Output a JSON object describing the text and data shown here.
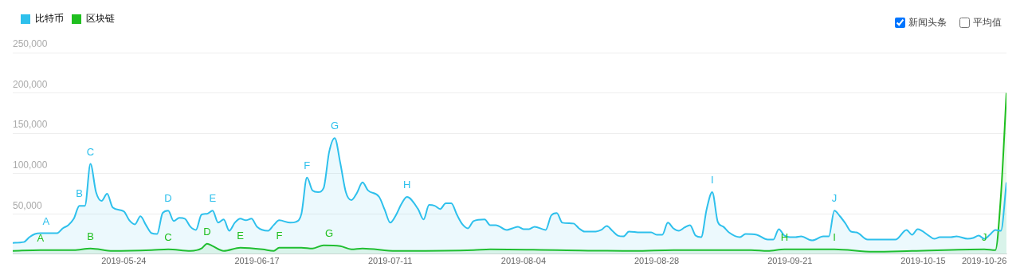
{
  "chart_data": {
    "type": "area",
    "legend": "top left",
    "grid": "y",
    "marker": "none",
    "xlim": [
      "2019-05-04",
      "2019-10-30"
    ],
    "xticks": [
      "2019-05-24",
      "2019-06-17",
      "2019-07-11",
      "2019-08-04",
      "2019-08-28",
      "2019-09-21",
      "2019-10-15",
      "2019-10-26"
    ],
    "ylim": [
      0,
      250000
    ],
    "yticks": [
      {
        "value": 0,
        "label": null
      },
      {
        "value": 50000,
        "label": "50,000"
      },
      {
        "value": 100000,
        "label": "100,000"
      },
      {
        "value": 150000,
        "label": "150,000"
      },
      {
        "value": 200000,
        "label": "200,000"
      },
      {
        "value": 250000,
        "label": "250,000"
      }
    ],
    "series": [
      {
        "name": "比特币",
        "color": "#2ec0ec",
        "x": [
          "2019-05-04",
          "2019-05-06",
          "2019-05-07",
          "2019-05-08",
          "2019-05-09",
          "2019-05-12",
          "2019-05-13",
          "2019-05-14",
          "2019-05-15",
          "2019-05-16",
          "2019-05-17",
          "2019-05-18",
          "2019-05-19",
          "2019-05-20",
          "2019-05-21",
          "2019-05-22",
          "2019-05-24",
          "2019-05-25",
          "2019-05-26",
          "2019-05-27",
          "2019-05-28",
          "2019-05-29",
          "2019-05-30",
          "2019-05-31",
          "2019-06-01",
          "2019-06-02",
          "2019-06-03",
          "2019-06-04",
          "2019-06-05",
          "2019-06-06",
          "2019-06-07",
          "2019-06-08",
          "2019-06-09",
          "2019-06-10",
          "2019-06-11",
          "2019-06-12",
          "2019-06-13",
          "2019-06-14",
          "2019-06-15",
          "2019-06-16",
          "2019-06-17",
          "2019-06-19",
          "2019-06-20",
          "2019-06-21",
          "2019-06-23",
          "2019-06-24",
          "2019-06-25",
          "2019-06-26",
          "2019-06-27",
          "2019-06-28",
          "2019-06-29",
          "2019-06-30",
          "2019-07-01",
          "2019-07-02",
          "2019-07-03",
          "2019-07-04",
          "2019-07-05",
          "2019-07-06",
          "2019-07-07",
          "2019-07-09",
          "2019-07-10",
          "2019-07-11",
          "2019-07-12",
          "2019-07-13",
          "2019-07-14",
          "2019-07-16",
          "2019-07-17",
          "2019-07-18",
          "2019-07-19",
          "2019-07-20",
          "2019-07-21",
          "2019-07-22",
          "2019-07-23",
          "2019-07-24",
          "2019-07-25",
          "2019-07-26",
          "2019-07-28",
          "2019-07-29",
          "2019-07-30",
          "2019-08-01",
          "2019-08-02",
          "2019-08-03",
          "2019-08-04",
          "2019-08-05",
          "2019-08-06",
          "2019-08-08",
          "2019-08-09",
          "2019-08-10",
          "2019-08-11",
          "2019-08-13",
          "2019-08-14",
          "2019-08-15",
          "2019-08-17",
          "2019-08-18",
          "2019-08-19",
          "2019-08-20",
          "2019-08-21",
          "2019-08-22",
          "2019-08-23",
          "2019-08-25",
          "2019-08-27",
          "2019-08-28",
          "2019-08-29",
          "2019-08-30",
          "2019-08-31",
          "2019-09-01",
          "2019-09-02",
          "2019-09-03",
          "2019-09-04",
          "2019-09-05",
          "2019-09-06",
          "2019-09-07",
          "2019-09-08",
          "2019-09-09",
          "2019-09-10",
          "2019-09-12",
          "2019-09-13",
          "2019-09-15",
          "2019-09-17",
          "2019-09-18",
          "2019-09-19",
          "2019-09-20",
          "2019-09-21",
          "2019-09-22",
          "2019-09-23",
          "2019-09-25",
          "2019-09-27",
          "2019-09-28",
          "2019-09-29",
          "2019-09-30",
          "2019-10-01",
          "2019-10-02",
          "2019-10-03",
          "2019-10-05",
          "2019-10-08",
          "2019-10-10",
          "2019-10-12",
          "2019-10-13",
          "2019-10-14",
          "2019-10-16",
          "2019-10-17",
          "2019-10-18",
          "2019-10-20",
          "2019-10-21",
          "2019-10-23",
          "2019-10-24",
          "2019-10-25",
          "2019-10-26",
          "2019-10-27",
          "2019-10-28",
          "2019-10-29",
          "2019-10-30"
        ],
        "values": [
          14000,
          15000,
          21000,
          25000,
          26000,
          26000,
          32000,
          36000,
          44000,
          60000,
          60000,
          112000,
          77000,
          66000,
          75000,
          58000,
          53000,
          42000,
          37000,
          47000,
          36000,
          26000,
          25000,
          51000,
          54000,
          41000,
          45000,
          44000,
          34000,
          30000,
          49000,
          50000,
          54000,
          39000,
          43000,
          29000,
          39000,
          44000,
          42000,
          44000,
          34000,
          29000,
          36000,
          42000,
          39000,
          40000,
          50000,
          95000,
          79000,
          77000,
          82000,
          127000,
          144000,
          113000,
          77000,
          67000,
          76000,
          89000,
          79000,
          71000,
          55000,
          39000,
          48000,
          62000,
          71000,
          56000,
          43000,
          61000,
          60000,
          56000,
          63000,
          63000,
          49000,
          37000,
          32000,
          41000,
          43000,
          36000,
          36000,
          30000,
          32000,
          34000,
          31000,
          31000,
          34000,
          30000,
          48000,
          51000,
          39000,
          38000,
          32000,
          28000,
          28000,
          30000,
          35000,
          29000,
          23000,
          22000,
          28000,
          27000,
          27000,
          24000,
          24000,
          39000,
          32000,
          29000,
          33000,
          36000,
          23000,
          21000,
          56000,
          77000,
          40000,
          34000,
          27000,
          21000,
          25000,
          24000,
          18000,
          18000,
          31000,
          23000,
          21000,
          21000,
          22000,
          17000,
          22000,
          22000,
          54000,
          47000,
          38000,
          28000,
          27000,
          18000,
          18000,
          18000,
          30000,
          24000,
          31000,
          23000,
          19000,
          21000,
          21000,
          22000,
          19000,
          20000,
          23000,
          19000,
          24000,
          30000,
          29000,
          89000
        ]
      },
      {
        "name": "区块链",
        "color": "#1fbf1f",
        "x": [
          "2019-05-04",
          "2019-05-09",
          "2019-05-15",
          "2019-05-18",
          "2019-05-22",
          "2019-05-29",
          "2019-06-01",
          "2019-06-05",
          "2019-06-07",
          "2019-06-08",
          "2019-06-09",
          "2019-06-11",
          "2019-06-14",
          "2019-06-18",
          "2019-06-20",
          "2019-06-21",
          "2019-06-25",
          "2019-06-27",
          "2019-06-29",
          "2019-07-02",
          "2019-07-04",
          "2019-07-06",
          "2019-07-12",
          "2019-07-26",
          "2019-07-29",
          "2019-08-10",
          "2019-08-24",
          "2019-08-31",
          "2019-09-07",
          "2019-09-14",
          "2019-09-17",
          "2019-09-20",
          "2019-09-29",
          "2019-10-06",
          "2019-10-13",
          "2019-10-26",
          "2019-10-28",
          "2019-10-29",
          "2019-10-30"
        ],
        "values": [
          4000,
          5000,
          5000,
          7000,
          4000,
          5000,
          6000,
          4000,
          7000,
          13000,
          10000,
          4000,
          8000,
          6000,
          4000,
          8000,
          8000,
          7000,
          11000,
          10000,
          6000,
          7000,
          4000,
          5000,
          6000,
          5000,
          4000,
          5000,
          5000,
          5000,
          4000,
          6000,
          6000,
          3000,
          4000,
          6000,
          5000,
          73000,
          200000
        ]
      }
    ],
    "annotations": [
      "新闻头条",
      "平均值",
      {
        "text": "A",
        "x": "2019-05-10",
        "y": 26000
      },
      {
        "text": "B",
        "x": "2019-05-16",
        "y": 60000
      },
      {
        "text": "C",
        "x": "2019-05-18",
        "y": 112000
      },
      {
        "text": "D",
        "x": "2019-06-01",
        "y": 54000
      },
      {
        "text": "E",
        "x": "2019-06-09",
        "y": 54000
      },
      {
        "text": "F",
        "x": "2019-06-26",
        "y": 95000
      },
      {
        "text": "G",
        "x": "2019-07-01",
        "y": 144000
      },
      {
        "text": "H",
        "x": "2019-07-14",
        "y": 71000
      },
      {
        "text": "I",
        "x": "2019-09-07",
        "y": 77000
      },
      {
        "text": "J",
        "x": "2019-09-29",
        "y": 54000
      },
      {
        "text": "A",
        "x": "2019-05-09",
        "y": 5000
      },
      {
        "text": "B",
        "x": "2019-05-18",
        "y": 7000
      },
      {
        "text": "C",
        "x": "2019-06-01",
        "y": 6000
      },
      {
        "text": "D",
        "x": "2019-06-08",
        "y": 13000
      },
      {
        "text": "E",
        "x": "2019-06-14",
        "y": 8000
      },
      {
        "text": "F",
        "x": "2019-06-21",
        "y": 8000
      },
      {
        "text": "G",
        "x": "2019-06-30",
        "y": 11000
      },
      {
        "text": "H",
        "x": "2019-09-20",
        "y": 6000
      },
      {
        "text": "I",
        "x": "2019-09-29",
        "y": 6000
      },
      {
        "text": "J",
        "x": "2019-10-26",
        "y": 6000
      }
    ]
  }
}
